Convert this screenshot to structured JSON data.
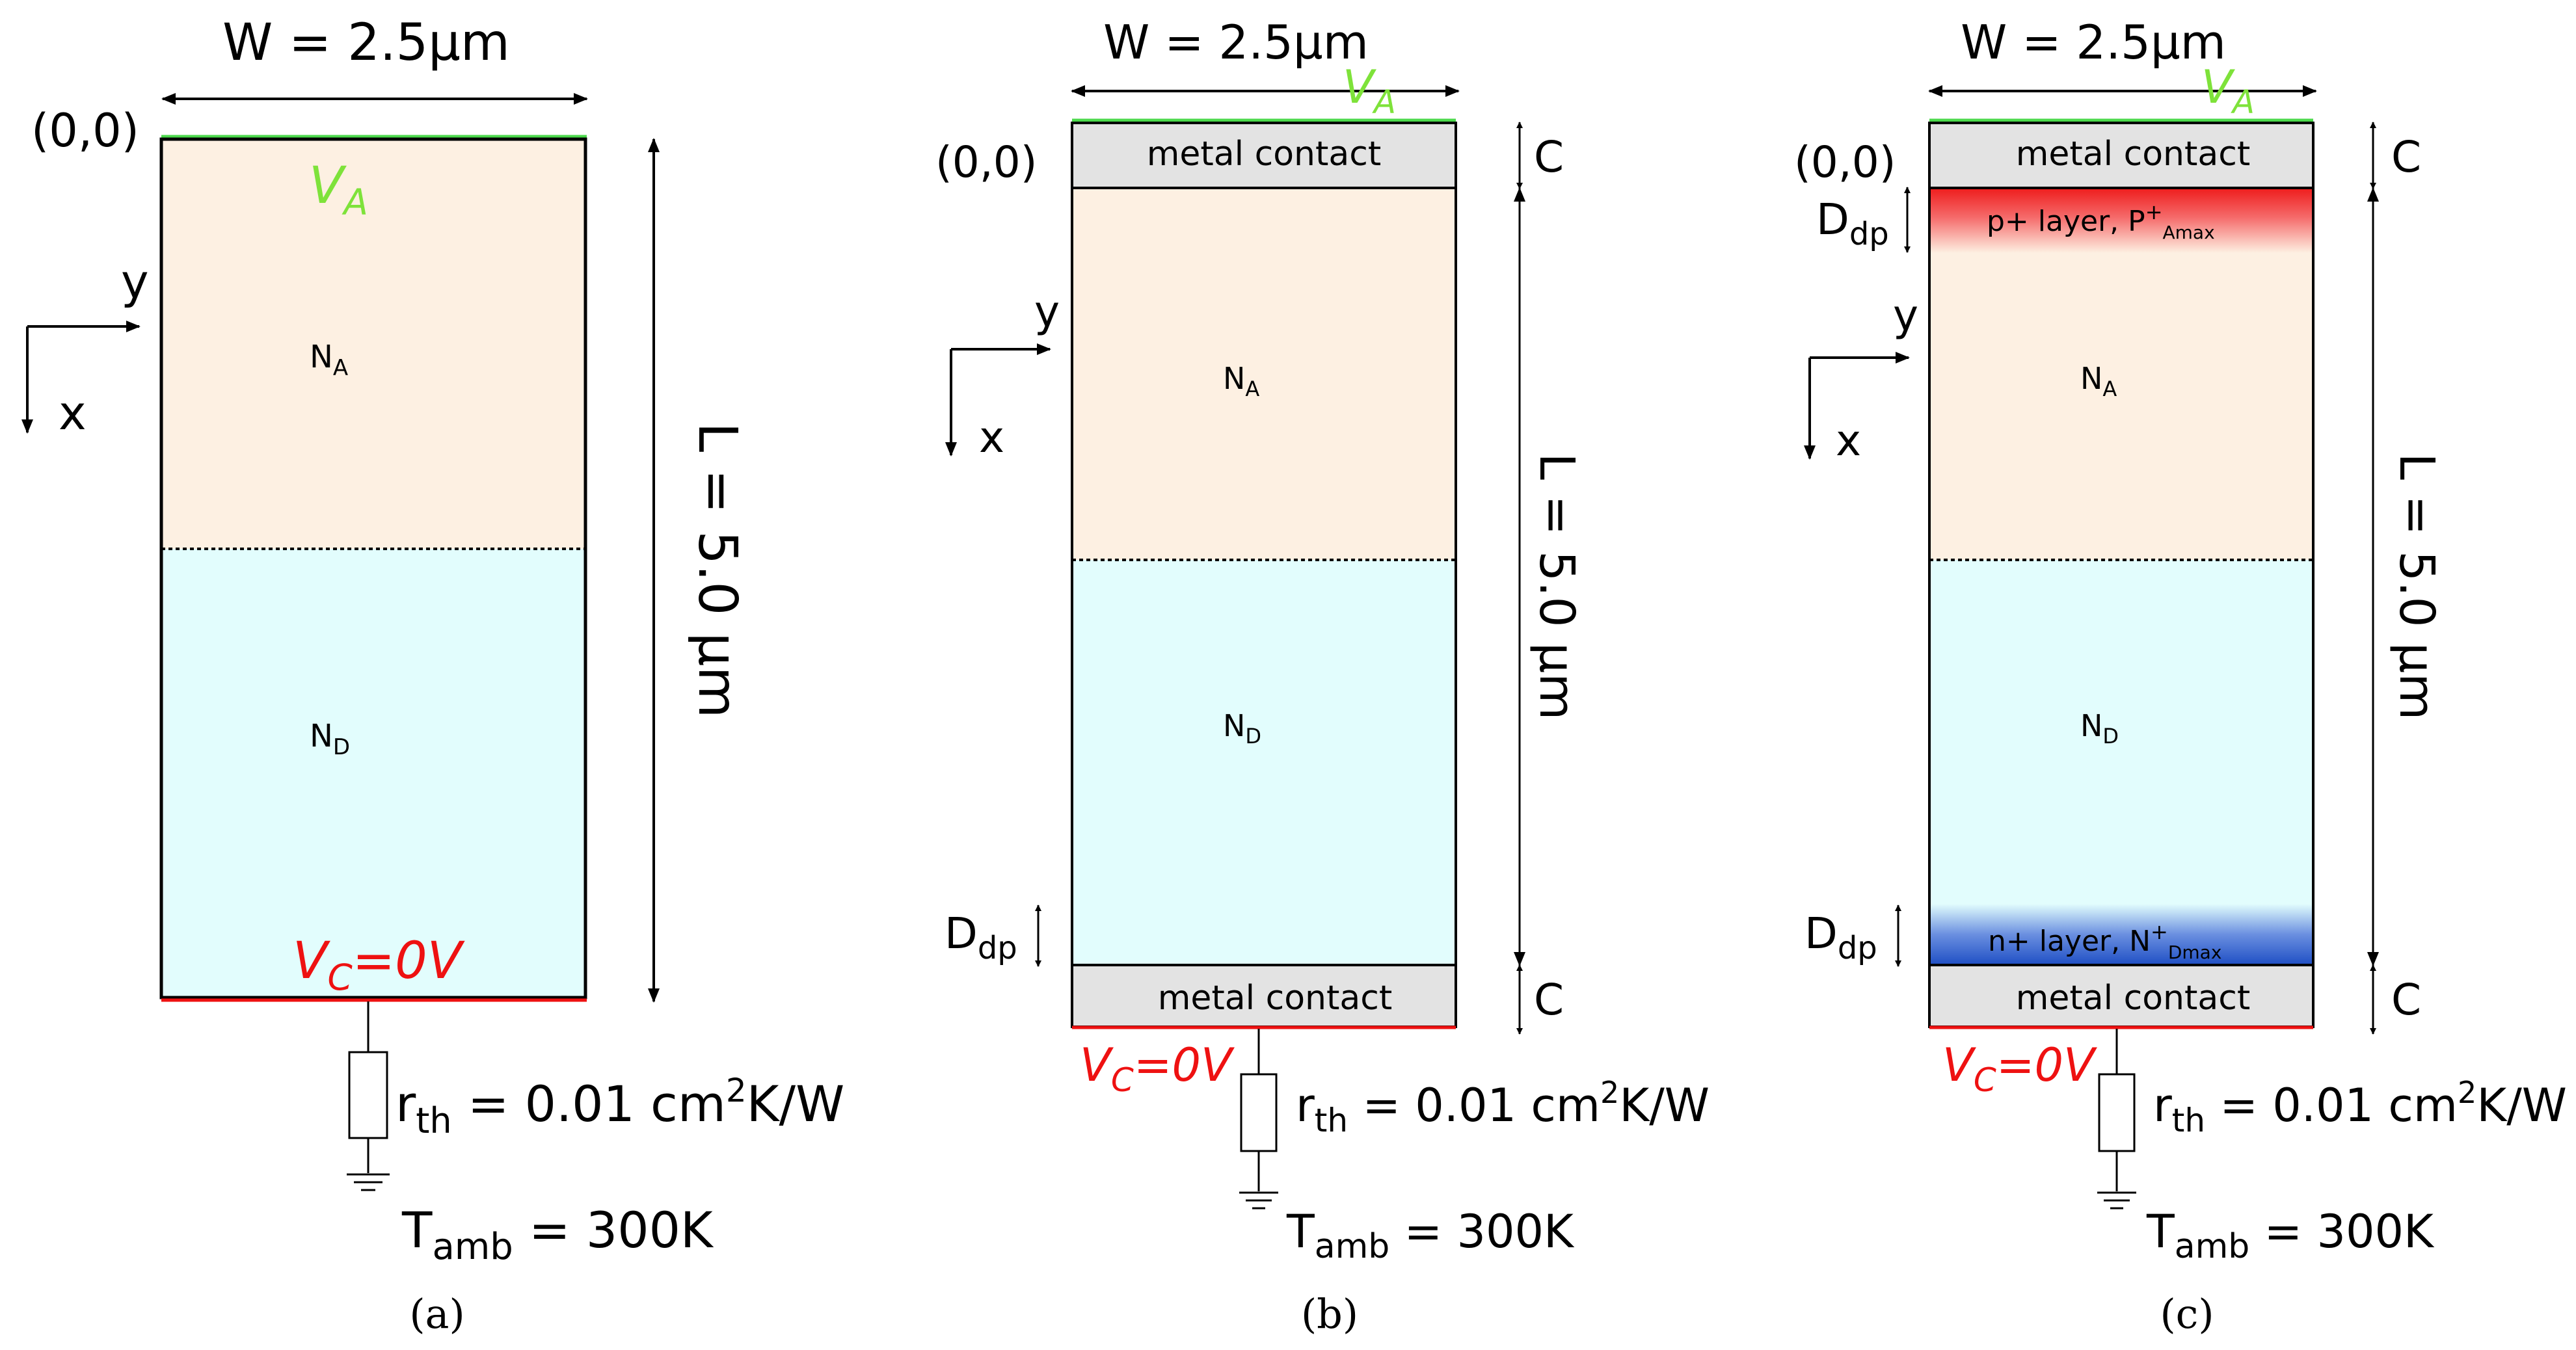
{
  "colors": {
    "p_region": "#fdf0e2",
    "n_region": "#e2fdfd",
    "metal": "#e3e3e3",
    "anode_line": "#4cd94c",
    "anode_text": "#7ee23a",
    "cathode": "#ee1111",
    "p_plus": "#ee1c1c",
    "n_plus": "#1f4fc4",
    "outline": "#000000"
  },
  "panels": [
    {
      "caption": "(a)",
      "width_label": "W = 2.5µm",
      "length_label": "L = 5.0 µm",
      "origin": "(0,0)",
      "va": "V",
      "va_sub": "A",
      "vc": "V",
      "vc_sub": "C",
      "vc_rest": "=0V",
      "na": "N",
      "na_sub": "A",
      "nd": "N",
      "nd_sub": "D",
      "axis_y": "y",
      "axis_x": "x",
      "rth": "r",
      "rth_sub": "th",
      "rth_val": " = 0.01 cm",
      "rth_sup": "2",
      "rth_unit": "K/W",
      "tamb": "T",
      "tamb_sub": "amb",
      "tamb_val": " = 300K"
    },
    {
      "caption": "(b)",
      "width_label": "W = 2.5µm",
      "length_label": "L = 5.0 µm",
      "origin": "(0,0)",
      "va": "V",
      "va_sub": "A",
      "vc": "V",
      "vc_sub": "C",
      "vc_rest": "=0V",
      "na": "N",
      "na_sub": "A",
      "nd": "N",
      "nd_sub": "D",
      "axis_y": "y",
      "axis_x": "x",
      "metal_top": "metal contact",
      "metal_bottom": "metal contact",
      "c_top": "C",
      "c_bottom": "C",
      "ddp": "D",
      "ddp_sub": "dp",
      "rth": "r",
      "rth_sub": "th",
      "rth_val": " = 0.01 cm",
      "rth_sup": "2",
      "rth_unit": "K/W",
      "tamb": "T",
      "tamb_sub": "amb",
      "tamb_val": " = 300K"
    },
    {
      "caption": "(c)",
      "width_label": "W = 2.5µm",
      "length_label": "L = 5.0 µm",
      "origin": "(0,0)",
      "va": "V",
      "va_sub": "A",
      "vc": "V",
      "vc_sub": "C",
      "vc_rest": "=0V",
      "na": "N",
      "na_sub": "A",
      "nd": "N",
      "nd_sub": "D",
      "axis_y": "y",
      "axis_x": "x",
      "metal_top": "metal contact",
      "metal_bottom": "metal contact",
      "c_top": "C",
      "c_bottom": "C",
      "ddp": "D",
      "ddp_sub": "dp",
      "ddp2": "D",
      "ddp2_sub": "dp",
      "pplus": "p+ layer, P",
      "pplus_sup": "+",
      "pplus_sub": "Amax",
      "nplus": "n+ layer, N",
      "nplus_sup": "+",
      "nplus_sub": "Dmax",
      "rth": "r",
      "rth_sub": "th",
      "rth_val": " = 0.01 cm",
      "rth_sup": "2",
      "rth_unit": "K/W",
      "tamb": "T",
      "tamb_sub": "amb",
      "tamb_val": " = 300K"
    }
  ]
}
